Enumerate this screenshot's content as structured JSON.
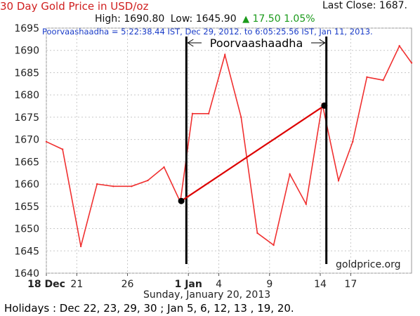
{
  "header": {
    "title": "30 Day Gold Price in USD/oz",
    "high_label": "High:",
    "high_value": "1690.80",
    "low_label": "Low:",
    "low_value": "1645.90",
    "change_value": "17.50",
    "change_pct": "1.05%",
    "last_close_label": "Last Close:",
    "last_close_value": "1687."
  },
  "annotation": {
    "text": "Poorvaashaadha = 5:22:38.44 IST, Dec 29, 2012.  to 6:05:25.56 IST, Jan 11, 2013.",
    "span_label": "Poorvaashaadha"
  },
  "footer": {
    "date_caption": "Sunday, January 20, 2013",
    "watermark": "goldprice.org",
    "holidays": "Holidays : Dec 22, 23, 29, 30 ;   Jan 5, 6, 12, 13 , 19, 20."
  },
  "colors": {
    "line": "#f03030",
    "overlay": "#dd0000",
    "grid": "#c8c8c8",
    "accent_up": "#1a9a1a"
  },
  "chart_data": {
    "type": "line",
    "y_ticks": [
      1640,
      1645,
      1650,
      1655,
      1660,
      1665,
      1670,
      1675,
      1680,
      1685,
      1690,
      1695
    ],
    "ylim": [
      1640,
      1695
    ],
    "x_ticks": [
      {
        "label": "18 Dec",
        "day": 0,
        "bold": true
      },
      {
        "label": "21",
        "day": 3,
        "bold": false
      },
      {
        "label": "26",
        "day": 8,
        "bold": false
      },
      {
        "label": "1 Jan",
        "day": 14,
        "bold": true
      },
      {
        "label": "4",
        "day": 17,
        "bold": false
      },
      {
        "label": "9",
        "day": 22,
        "bold": false
      },
      {
        "label": "14",
        "day": 27,
        "bold": false
      },
      {
        "label": "17",
        "day": 30,
        "bold": false
      }
    ],
    "series": [
      {
        "values": [
          [
            0,
            1669.5
          ],
          [
            1.6,
            1667.8
          ],
          [
            3.4,
            1646.0
          ],
          [
            5.0,
            1660.0
          ],
          [
            6.6,
            1659.5
          ],
          [
            8.4,
            1659.5
          ],
          [
            10.0,
            1660.8
          ],
          [
            11.6,
            1663.8
          ],
          [
            13.2,
            1656.0
          ],
          [
            14.4,
            1675.8
          ],
          [
            16.0,
            1675.8
          ],
          [
            17.6,
            1689.0
          ],
          [
            19.2,
            1675.0
          ],
          [
            20.8,
            1649.0
          ],
          [
            22.4,
            1646.3
          ],
          [
            24.0,
            1662.2
          ],
          [
            25.6,
            1655.5
          ],
          [
            27.2,
            1678.0
          ],
          [
            28.8,
            1660.8
          ],
          [
            30.2,
            1669.5
          ],
          [
            31.6,
            1684.0
          ],
          [
            33.2,
            1683.3
          ],
          [
            34.8,
            1691.0
          ],
          [
            36.0,
            1687.2
          ]
        ]
      }
    ],
    "markers": [
      {
        "day": 13.3,
        "y": 1656.2
      },
      {
        "day": 27.4,
        "y": 1677.6
      }
    ],
    "vlines": [
      13.8,
      27.6
    ]
  }
}
